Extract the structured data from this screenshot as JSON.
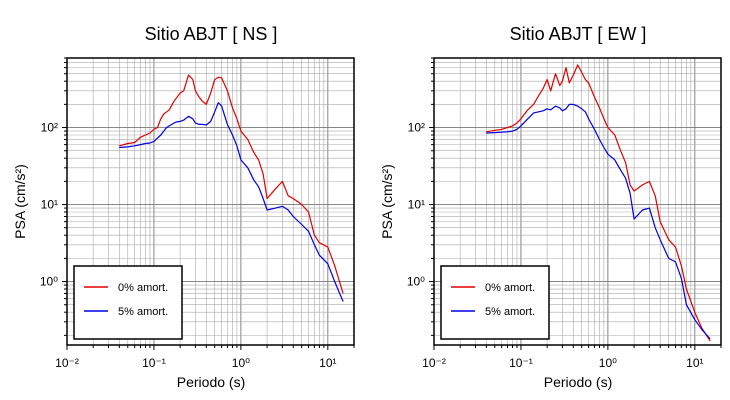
{
  "chart_data": [
    {
      "type": "line",
      "title": "Sitio ABJT [ NS ]",
      "xlabel": "Periodo (s)",
      "ylabel": "PSA (cm/s²)",
      "xscale": "log",
      "yscale": "log",
      "xlim": [
        0.01,
        20
      ],
      "ylim": [
        0.15,
        800
      ],
      "grid": true,
      "legend_position": "bottom-left",
      "x_tick_labels": [
        "10⁻²",
        "10⁻¹",
        "10⁰",
        "10¹"
      ],
      "y_tick_labels": [
        "10⁰",
        "10¹",
        "10²"
      ],
      "series": [
        {
          "name": "0% amort.",
          "color": "#e00000",
          "x": [
            0.04,
            0.05,
            0.06,
            0.07,
            0.08,
            0.09,
            0.1,
            0.11,
            0.12,
            0.13,
            0.14,
            0.15,
            0.17,
            0.2,
            0.22,
            0.25,
            0.28,
            0.3,
            0.33,
            0.36,
            0.4,
            0.45,
            0.5,
            0.55,
            0.6,
            0.7,
            0.8,
            0.9,
            1.0,
            1.2,
            1.4,
            1.6,
            1.8,
            2.0,
            2.5,
            3.0,
            3.5,
            4.0,
            5.0,
            6.0,
            7.0,
            8.0,
            10.0,
            12.0,
            15.0
          ],
          "y": [
            58,
            62,
            64,
            75,
            80,
            85,
            95,
            100,
            130,
            150,
            160,
            170,
            220,
            280,
            300,
            480,
            420,
            300,
            250,
            220,
            200,
            280,
            420,
            450,
            440,
            300,
            180,
            130,
            90,
            70,
            48,
            38,
            25,
            12,
            16,
            20,
            13,
            12,
            10,
            8,
            4,
            3.2,
            2.8,
            1.6,
            0.7
          ]
        },
        {
          "name": "5% amort.",
          "color": "#0000e0",
          "x": [
            0.04,
            0.05,
            0.06,
            0.07,
            0.08,
            0.09,
            0.1,
            0.12,
            0.14,
            0.16,
            0.18,
            0.2,
            0.22,
            0.25,
            0.28,
            0.3,
            0.33,
            0.36,
            0.4,
            0.45,
            0.5,
            0.55,
            0.6,
            0.7,
            0.8,
            0.9,
            1.0,
            1.2,
            1.4,
            1.6,
            1.8,
            2.0,
            2.5,
            3.0,
            3.5,
            4.0,
            5.0,
            6.0,
            7.0,
            8.0,
            10.0,
            12.0,
            15.0
          ],
          "y": [
            55,
            56,
            58,
            60,
            62,
            63,
            66,
            80,
            100,
            110,
            118,
            120,
            125,
            140,
            130,
            115,
            110,
            110,
            108,
            120,
            160,
            210,
            190,
            110,
            80,
            58,
            38,
            30,
            21,
            17,
            12,
            8.5,
            9,
            9.5,
            8.5,
            7,
            5.5,
            4.5,
            3,
            2.2,
            1.7,
            1.0,
            0.55
          ]
        }
      ]
    },
    {
      "type": "line",
      "title": "Sitio ABJT [ EW ]",
      "xlabel": "Periodo (s)",
      "ylabel": "PSA (cm/s²)",
      "xscale": "log",
      "yscale": "log",
      "xlim": [
        0.01,
        20
      ],
      "ylim": [
        0.15,
        800
      ],
      "grid": true,
      "legend_position": "bottom-left",
      "x_tick_labels": [
        "10⁻²",
        "10⁻¹",
        "10⁰",
        "10¹"
      ],
      "y_tick_labels": [
        "10⁰",
        "10¹",
        "10²"
      ],
      "series": [
        {
          "name": "0% amort.",
          "color": "#e00000",
          "x": [
            0.04,
            0.05,
            0.06,
            0.07,
            0.08,
            0.09,
            0.1,
            0.12,
            0.14,
            0.16,
            0.18,
            0.2,
            0.22,
            0.25,
            0.28,
            0.3,
            0.33,
            0.36,
            0.4,
            0.45,
            0.5,
            0.55,
            0.6,
            0.7,
            0.8,
            0.9,
            1.0,
            1.2,
            1.4,
            1.6,
            1.8,
            2.0,
            2.5,
            3.0,
            3.5,
            4.0,
            5.0,
            6.0,
            7.0,
            8.0,
            10.0,
            12.0,
            15.0
          ],
          "y": [
            88,
            92,
            95,
            100,
            105,
            115,
            130,
            170,
            200,
            260,
            320,
            420,
            300,
            500,
            350,
            400,
            600,
            380,
            480,
            650,
            520,
            420,
            380,
            250,
            180,
            130,
            100,
            80,
            50,
            35,
            18,
            15,
            18,
            20,
            13,
            6,
            3.5,
            2.8,
            1.6,
            0.8,
            0.4,
            0.25,
            0.17
          ]
        },
        {
          "name": "5% amort.",
          "color": "#0000e0",
          "x": [
            0.04,
            0.05,
            0.06,
            0.07,
            0.08,
            0.09,
            0.1,
            0.12,
            0.14,
            0.16,
            0.18,
            0.2,
            0.22,
            0.25,
            0.28,
            0.3,
            0.33,
            0.36,
            0.4,
            0.45,
            0.5,
            0.55,
            0.6,
            0.7,
            0.8,
            0.9,
            1.0,
            1.2,
            1.4,
            1.6,
            1.8,
            2.0,
            2.5,
            3.0,
            3.5,
            4.0,
            5.0,
            6.0,
            7.0,
            8.0,
            10.0,
            12.0,
            15.0
          ],
          "y": [
            85,
            86,
            87,
            88,
            90,
            95,
            105,
            130,
            155,
            160,
            165,
            175,
            170,
            190,
            180,
            165,
            175,
            200,
            200,
            190,
            175,
            160,
            130,
            95,
            70,
            55,
            45,
            38,
            28,
            22,
            14,
            6.5,
            8.5,
            9,
            5,
            3.5,
            2,
            1.8,
            1.1,
            0.5,
            0.32,
            0.24,
            0.18
          ]
        }
      ]
    }
  ]
}
